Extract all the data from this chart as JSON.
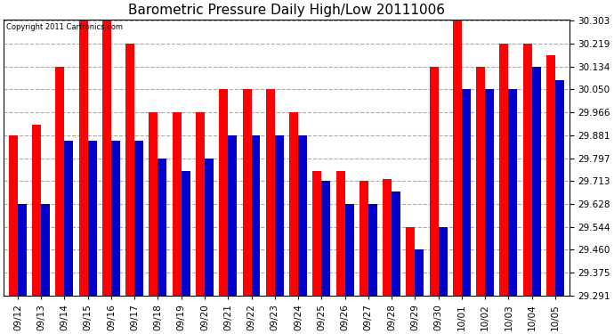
{
  "title": "Barometric Pressure Daily High/Low 20111006",
  "copyright": "Copyright 2011 Cartronics.com",
  "dates": [
    "09/12",
    "09/13",
    "09/14",
    "09/15",
    "09/16",
    "09/17",
    "09/18",
    "09/19",
    "09/20",
    "09/21",
    "09/22",
    "09/23",
    "09/24",
    "09/25",
    "09/26",
    "09/27",
    "09/28",
    "09/29",
    "09/30",
    "10/01",
    "10/02",
    "10/03",
    "10/04",
    "10/05"
  ],
  "highs": [
    29.881,
    29.92,
    30.134,
    30.303,
    30.303,
    30.219,
    29.966,
    29.966,
    29.966,
    30.05,
    30.05,
    30.05,
    29.966,
    29.75,
    29.75,
    29.713,
    29.72,
    29.544,
    30.134,
    30.303,
    30.134,
    30.219,
    30.219,
    30.175
  ],
  "lows": [
    29.628,
    29.628,
    29.86,
    29.86,
    29.86,
    29.86,
    29.797,
    29.75,
    29.797,
    29.881,
    29.881,
    29.881,
    29.881,
    29.713,
    29.628,
    29.628,
    29.675,
    29.46,
    29.544,
    30.05,
    30.05,
    30.05,
    30.134,
    30.085
  ],
  "high_color": "#FF0000",
  "low_color": "#0000CC",
  "background_color": "#FFFFFF",
  "grid_color": "#AAAAAA",
  "yticks": [
    29.291,
    29.375,
    29.46,
    29.544,
    29.628,
    29.713,
    29.797,
    29.881,
    29.966,
    30.05,
    30.134,
    30.219,
    30.303
  ],
  "ymin": 29.291,
  "ymax": 30.303
}
